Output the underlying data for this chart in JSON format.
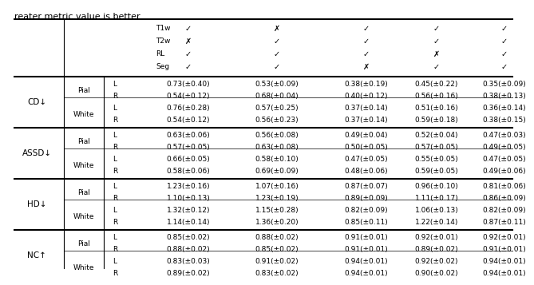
{
  "title_text": "reater metric value is better.",
  "header_row": {
    "modalities": [
      "T1w",
      "T2w",
      "RL",
      "Seg"
    ],
    "checks": [
      [
        "✓",
        "✗",
        "✓",
        "✓"
      ],
      [
        "✗",
        "✓",
        "✓",
        "✓"
      ],
      [
        "✓",
        "✓",
        "✓",
        "✗"
      ],
      [
        "✓",
        "✓",
        "✗",
        "✓"
      ],
      [
        "✓",
        "✓",
        "✓",
        "✓"
      ]
    ]
  },
  "metrics": [
    {
      "name": "CD↓",
      "surfaces": [
        {
          "name": "Pial",
          "rows": [
            {
              "lr": "L",
              "vals": [
                "0.73(±0.40)",
                "0.53(±0.09)",
                "0.38(±0.19)",
                "0.45(±0.22)",
                "0.35(±0.09)"
              ]
            },
            {
              "lr": "R",
              "vals": [
                "0.54(±0.12)",
                "0.68(±0.04)",
                "0.40(±0.12)",
                "0.56(±0.16)",
                "0.38(±0.13)"
              ]
            }
          ]
        },
        {
          "name": "White",
          "rows": [
            {
              "lr": "L",
              "vals": [
                "0.76(±0.28)",
                "0.57(±0.25)",
                "0.37(±0.14)",
                "0.51(±0.16)",
                "0.36(±0.14)"
              ]
            },
            {
              "lr": "R",
              "vals": [
                "0.54(±0.12)",
                "0.56(±0.23)",
                "0.37(±0.14)",
                "0.59(±0.18)",
                "0.38(±0.15)"
              ]
            }
          ]
        }
      ]
    },
    {
      "name": "ASSD↓",
      "surfaces": [
        {
          "name": "Pial",
          "rows": [
            {
              "lr": "L",
              "vals": [
                "0.63(±0.06)",
                "0.56(±0.08)",
                "0.49(±0.04)",
                "0.52(±0.04)",
                "0.47(±0.03)"
              ]
            },
            {
              "lr": "R",
              "vals": [
                "0.57(±0.05)",
                "0.63(±0.08)",
                "0.50(±0.05)",
                "0.57(±0.05)",
                "0.49(±0.05)"
              ]
            }
          ]
        },
        {
          "name": "White",
          "rows": [
            {
              "lr": "L",
              "vals": [
                "0.66(±0.05)",
                "0.58(±0.10)",
                "0.47(±0.05)",
                "0.55(±0.05)",
                "0.47(±0.05)"
              ]
            },
            {
              "lr": "R",
              "vals": [
                "0.58(±0.06)",
                "0.69(±0.09)",
                "0.48(±0.06)",
                "0.59(±0.05)",
                "0.49(±0.06)"
              ]
            }
          ]
        }
      ]
    },
    {
      "name": "HD↓",
      "surfaces": [
        {
          "name": "Pial",
          "rows": [
            {
              "lr": "L",
              "vals": [
                "1.23(±0.16)",
                "1.07(±0.16)",
                "0.87(±0.07)",
                "0.96(±0.10)",
                "0.81(±0.06)"
              ]
            },
            {
              "lr": "R",
              "vals": [
                "1.10(±0.13)",
                "1.23(±0.19)",
                "0.89(±0.09)",
                "1.11(±0.17)",
                "0.86(±0.09)"
              ]
            }
          ]
        },
        {
          "name": "White",
          "rows": [
            {
              "lr": "L",
              "vals": [
                "1.32(±0.12)",
                "1.15(±0.28)",
                "0.82(±0.09)",
                "1.06(±0.13)",
                "0.82(±0.09)"
              ]
            },
            {
              "lr": "R",
              "vals": [
                "1.14(±0.14)",
                "1.36(±0.20)",
                "0.85(±0.11)",
                "1.22(±0.14)",
                "0.87(±0.11)"
              ]
            }
          ]
        }
      ]
    },
    {
      "name": "NC↑",
      "surfaces": [
        {
          "name": "Pial",
          "rows": [
            {
              "lr": "L",
              "vals": [
                "0.85(±0.02)",
                "0.88(±0.02)",
                "0.91(±0.01)",
                "0.92(±0.01)",
                "0.92(±0.01)"
              ]
            },
            {
              "lr": "R",
              "vals": [
                "0.88(±0.02)",
                "0.85(±0.02)",
                "0.91(±0.01)",
                "0.89(±0.02)",
                "0.91(±0.01)"
              ]
            }
          ]
        },
        {
          "name": "White",
          "rows": [
            {
              "lr": "L",
              "vals": [
                "0.83(±0.03)",
                "0.91(±0.02)",
                "0.94(±0.01)",
                "0.92(±0.02)",
                "0.94(±0.01)"
              ]
            },
            {
              "lr": "R",
              "vals": [
                "0.89(±0.02)",
                "0.83(±0.02)",
                "0.94(±0.01)",
                "0.90(±0.02)",
                "0.94(±0.01)"
              ]
            }
          ]
        }
      ]
    }
  ],
  "bg_color": "#ffffff",
  "text_color": "#000000",
  "font_size": 6.5,
  "check_font_size": 7.0,
  "metric_font_size": 7.5,
  "title_font_size": 8.0
}
